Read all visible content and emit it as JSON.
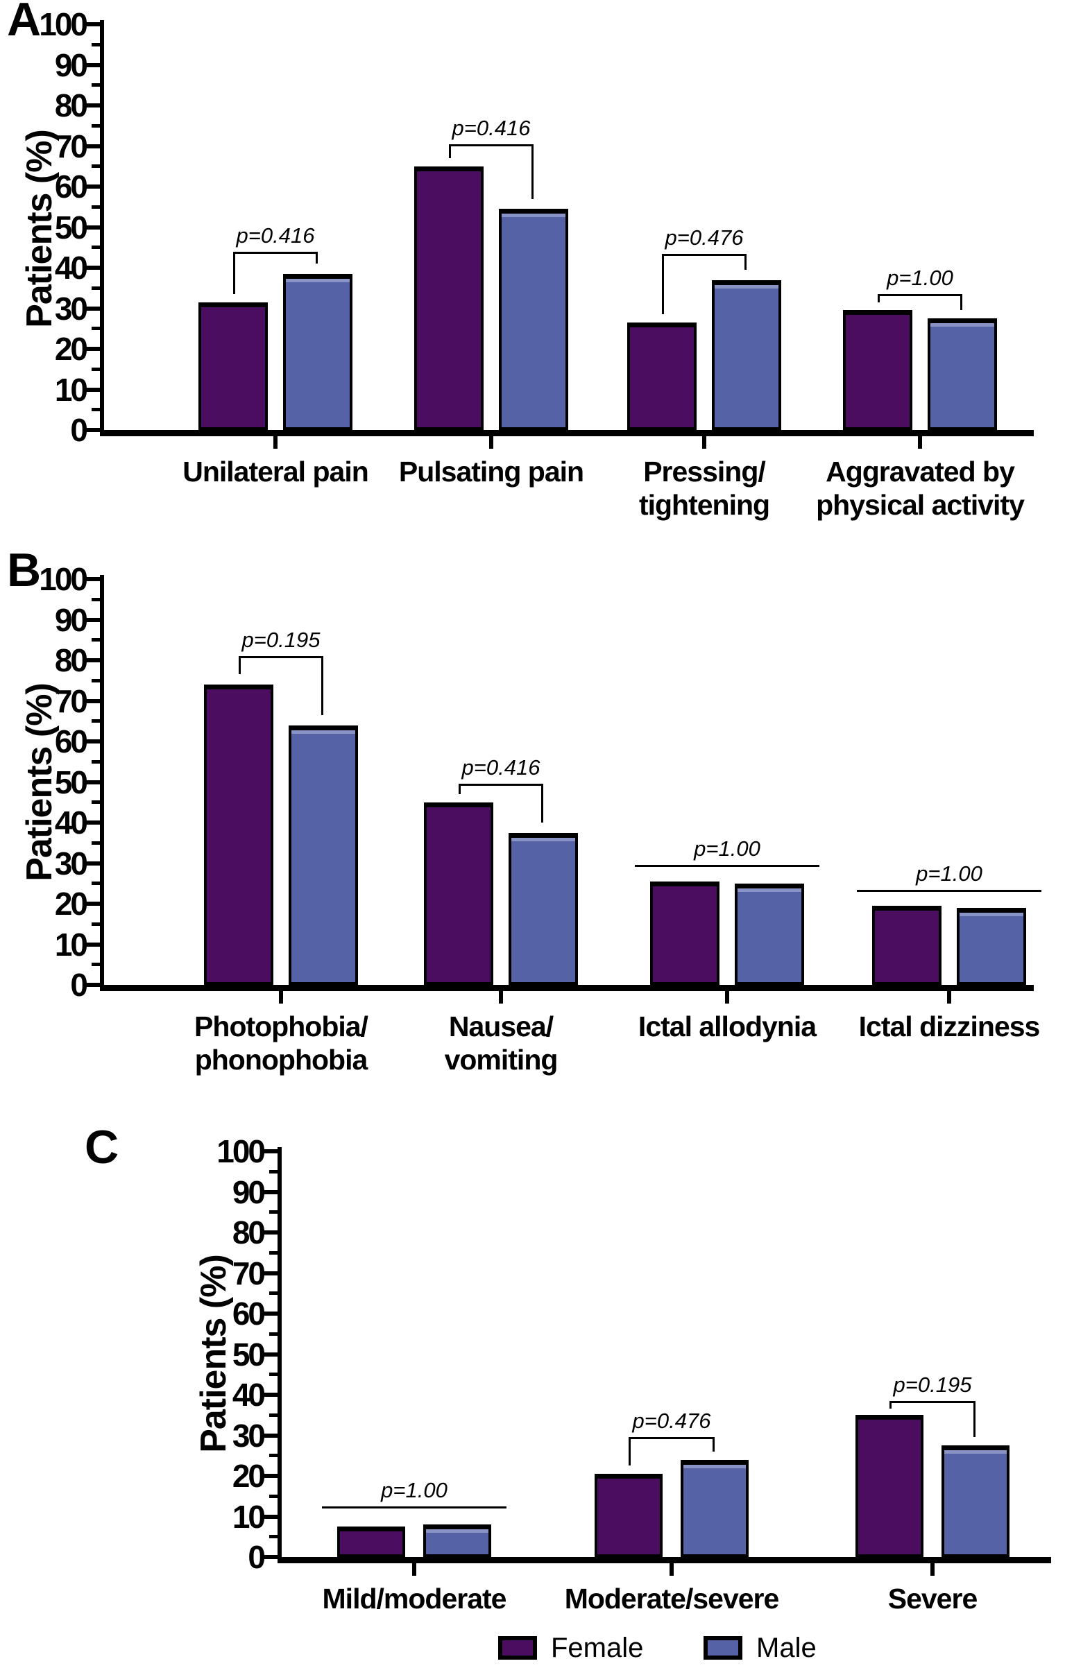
{
  "figure": {
    "colors": {
      "female": "#4B0D60",
      "male": "#5562A6",
      "male_highlight": "#8A93C6",
      "axis": "#000000",
      "background": "#FFFFFF"
    },
    "chart_data": [
      {
        "type": "bar",
        "panel": "A",
        "ylabel": "Patients (%)",
        "ylim": [
          0,
          100
        ],
        "ytick_major": 10,
        "ytick_minor": 5,
        "grid": false,
        "categories": [
          [
            "Unilateral pain"
          ],
          [
            "Pulsating pain"
          ],
          [
            "Pressing/",
            "tightening"
          ],
          [
            "Aggravated by",
            "physical activity"
          ]
        ],
        "series": [
          {
            "name": "Female",
            "values": [
              31.5,
              65,
              26.5,
              29.5
            ]
          },
          {
            "name": "Male",
            "values": [
              38.5,
              54.5,
              37,
              27.5
            ]
          }
        ],
        "annotations": [
          {
            "text": "p=0.416",
            "style": "bracket",
            "level": 44,
            "left_drop": 33.5,
            "right_drop": 41
          },
          {
            "text": "p=0.416",
            "style": "bracket",
            "level": 70.5,
            "left_drop": 67,
            "right_drop": 57
          },
          {
            "text": "p=0.476",
            "style": "bracket",
            "level": 43.5,
            "left_drop": 28.5,
            "right_drop": 39.5
          },
          {
            "text": "p=1.00",
            "style": "bracket",
            "level": 33.5,
            "left_drop": 31.5,
            "right_drop": 29.5
          }
        ]
      },
      {
        "type": "bar",
        "panel": "B",
        "ylabel": "Patients (%)",
        "ylim": [
          0,
          100
        ],
        "ytick_major": 10,
        "ytick_minor": 5,
        "grid": false,
        "categories": [
          [
            "Photophobia/",
            "phonophobia"
          ],
          [
            "Nausea/",
            "vomiting"
          ],
          [
            "Ictal allodynia"
          ],
          [
            "Ictal dizziness"
          ]
        ],
        "series": [
          {
            "name": "Female",
            "values": [
              74,
              45,
              25.5,
              19.5
            ]
          },
          {
            "name": "Male",
            "values": [
              64,
              37.5,
              25,
              19
            ]
          }
        ],
        "annotations": [
          {
            "text": "p=0.195",
            "style": "bracket",
            "level": 81,
            "left_drop": 76.5,
            "right_drop": 66.5
          },
          {
            "text": "p=0.416",
            "style": "bracket",
            "level": 49.5,
            "left_drop": 47,
            "right_drop": 40
          },
          {
            "text": "p=1.00",
            "style": "line",
            "level": 29.5
          },
          {
            "text": "p=1.00",
            "style": "line",
            "level": 23.5
          }
        ]
      },
      {
        "type": "bar",
        "panel": "C",
        "ylabel": "Patients (%)",
        "ylim": [
          0,
          100
        ],
        "ytick_major": 10,
        "ytick_minor": 5,
        "grid": false,
        "categories": [
          [
            "Mild/moderate"
          ],
          [
            "Moderate/severe"
          ],
          [
            "Severe"
          ]
        ],
        "series": [
          {
            "name": "Female",
            "values": [
              7.5,
              20.5,
              35
            ]
          },
          {
            "name": "Male",
            "values": [
              8,
              24,
              27.5
            ]
          }
        ],
        "annotations": [
          {
            "text": "p=1.00",
            "style": "line",
            "level": 12.5
          },
          {
            "text": "p=0.476",
            "style": "bracket",
            "level": 29.5,
            "left_drop": 22.5,
            "right_drop": 26
          },
          {
            "text": "p=0.195",
            "style": "bracket",
            "level": 38.5,
            "left_drop": 36.5,
            "right_drop": 29.5
          }
        ]
      }
    ],
    "legend": {
      "items": [
        {
          "label": "Female",
          "color_key": "female"
        },
        {
          "label": "Male",
          "color_key": "male"
        }
      ]
    }
  }
}
